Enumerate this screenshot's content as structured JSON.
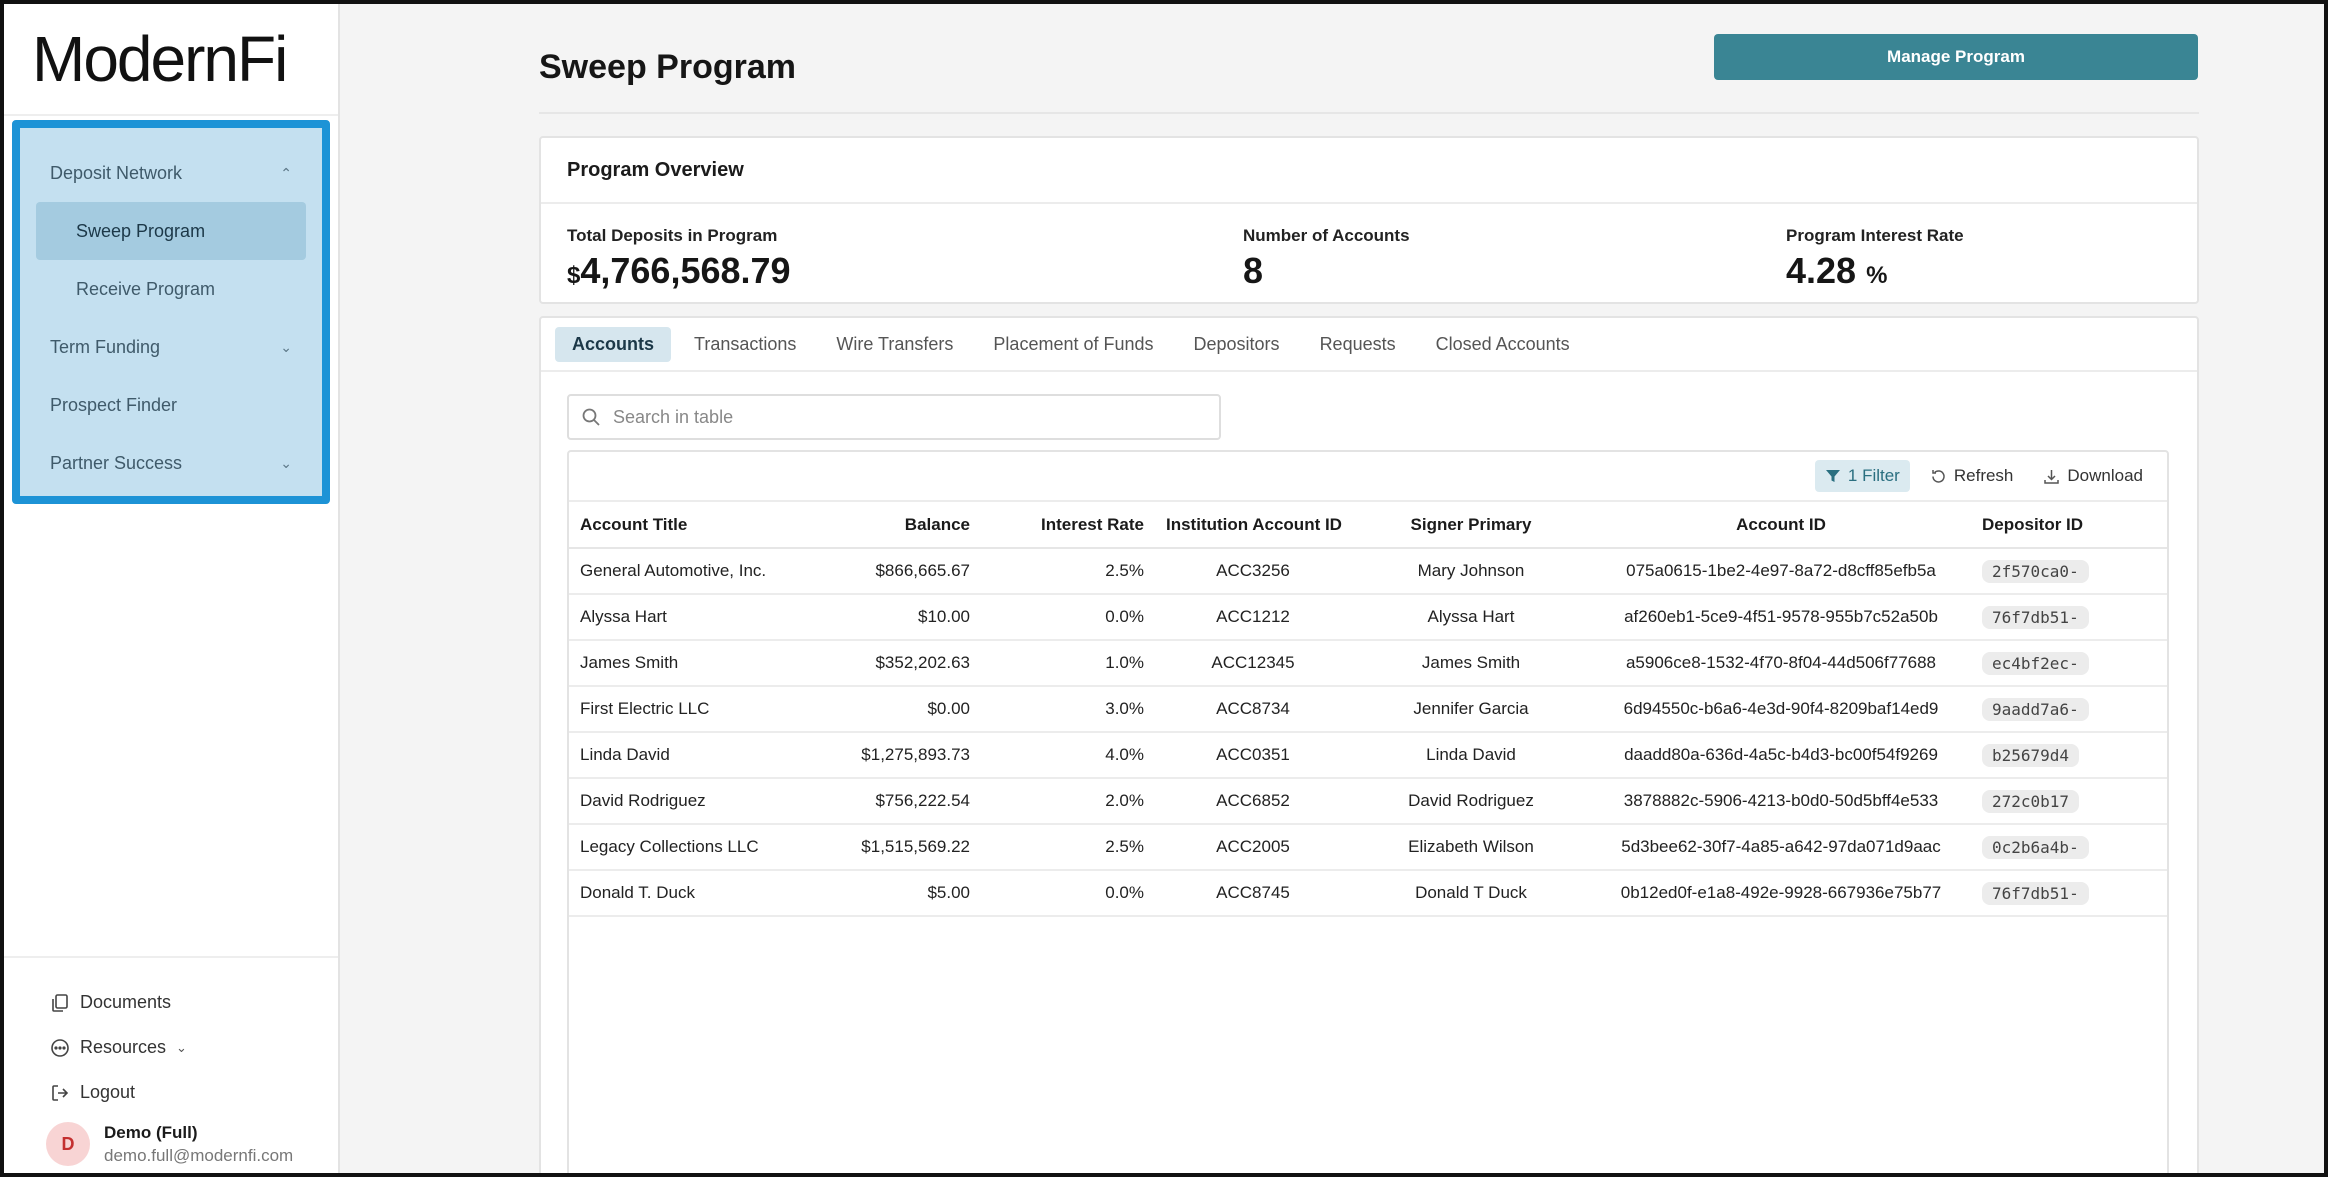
{
  "brand": {
    "logo": "ModernFi"
  },
  "sidebar": {
    "items": [
      {
        "label": "Deposit Network",
        "expanded": true,
        "children": [
          {
            "label": "Sweep Program",
            "active": true
          },
          {
            "label": "Receive Program",
            "active": false
          }
        ]
      },
      {
        "label": "Term Funding",
        "expanded": false
      },
      {
        "label": "Prospect Finder"
      },
      {
        "label": "Partner Success",
        "expanded": false
      }
    ],
    "bottom": {
      "documents": "Documents",
      "resources": "Resources",
      "logout": "Logout"
    },
    "user": {
      "initial": "D",
      "name": "Demo (Full)",
      "email": "demo.full@modernfi.com"
    }
  },
  "header": {
    "title": "Sweep Program",
    "manage_button": "Manage Program"
  },
  "overview": {
    "title": "Program Overview",
    "stats": [
      {
        "label": "Total Deposits in Program",
        "prefix": "$",
        "value": "4,766,568.79"
      },
      {
        "label": "Number of Accounts",
        "value": "8"
      },
      {
        "label": "Program Interest Rate",
        "value": "4.28",
        "suffix": "%"
      }
    ]
  },
  "tabs": [
    {
      "label": "Accounts",
      "active": true
    },
    {
      "label": "Transactions"
    },
    {
      "label": "Wire Transfers"
    },
    {
      "label": "Placement of Funds"
    },
    {
      "label": "Depositors"
    },
    {
      "label": "Requests"
    },
    {
      "label": "Closed Accounts"
    }
  ],
  "search": {
    "placeholder": "Search in table",
    "value": ""
  },
  "toolbar": {
    "filter": "1 Filter",
    "refresh": "Refresh",
    "download": "Download"
  },
  "table": {
    "columns": [
      "Account Title",
      "Balance",
      "Interest Rate",
      "Institution Account ID",
      "Signer Primary",
      "Account ID",
      "Depositor ID"
    ],
    "rows": [
      [
        "General Automotive, Inc.",
        "$866,665.67",
        "2.5%",
        "ACC3256",
        "Mary Johnson",
        "075a0615-1be2-4e97-8a72-d8cff85efb5a",
        "2f570ca0-"
      ],
      [
        "Alyssa Hart",
        "$10.00",
        "0.0%",
        "ACC1212",
        "Alyssa Hart",
        "af260eb1-5ce9-4f51-9578-955b7c52a50b",
        "76f7db51-"
      ],
      [
        "James Smith",
        "$352,202.63",
        "1.0%",
        "ACC12345",
        "James Smith",
        "a5906ce8-1532-4f70-8f04-44d506f77688",
        "ec4bf2ec-"
      ],
      [
        "First Electric LLC",
        "$0.00",
        "3.0%",
        "ACC8734",
        "Jennifer Garcia",
        "6d94550c-b6a6-4e3d-90f4-8209baf14ed9",
        "9aadd7a6-"
      ],
      [
        "Linda David",
        "$1,275,893.73",
        "4.0%",
        "ACC0351",
        "Linda David",
        "daadd80a-636d-4a5c-b4d3-bc00f54f9269",
        "b25679d4"
      ],
      [
        "David Rodriguez",
        "$756,222.54",
        "2.0%",
        "ACC6852",
        "David Rodriguez",
        "3878882c-5906-4213-b0d0-50d5bff4e533",
        "272c0b17"
      ],
      [
        "Legacy Collections LLC",
        "$1,515,569.22",
        "2.5%",
        "ACC2005",
        "Elizabeth Wilson",
        "5d3bee62-30f7-4a85-a642-97da071d9aac",
        "0c2b6a4b-"
      ],
      [
        "Donald T. Duck",
        "$5.00",
        "0.0%",
        "ACC8745",
        "Donald T Duck",
        "0b12ed0f-e1a8-492e-9928-667936e75b77",
        "76f7db51-"
      ]
    ]
  },
  "icons": {
    "filter": "filter-icon",
    "refresh": "refresh-icon",
    "download": "download-icon",
    "search": "search-icon"
  },
  "colors": {
    "accent": "#3a8594",
    "nav_highlight": "#1d93d6",
    "nav_bg": "#c4e0f0"
  }
}
